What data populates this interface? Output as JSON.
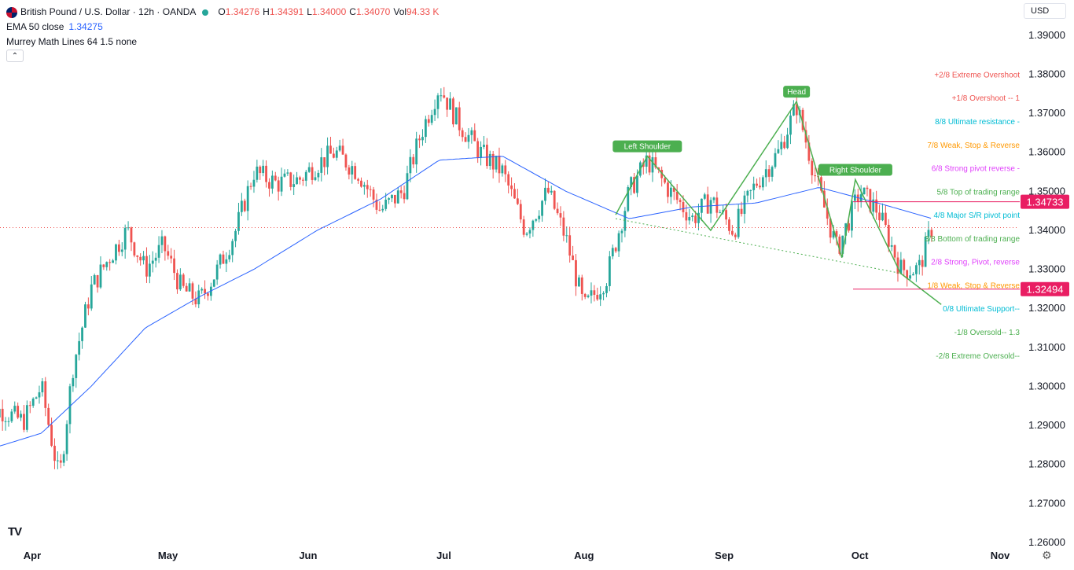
{
  "legend": {
    "symbol": "British Pound / U.S. Dollar · 12h · OANDA",
    "o_label": "O",
    "o_value": "1.34276",
    "h_label": "H",
    "h_value": "1.34391",
    "l_label": "L",
    "l_value": "1.34000",
    "c_label": "C",
    "c_value": "1.34070",
    "vol_label": "Vol",
    "vol_value": "94.33 K",
    "ema_label": "EMA 50 close",
    "ema_value": "1.34275",
    "murrey_label": "Murrey Math Lines 64 1.5 none",
    "collapse_icon": "chevron-up-icon"
  },
  "toolbar": {
    "currency": "USD"
  },
  "footer": {
    "logo_text": "TV",
    "settings_icon": "gear-icon"
  },
  "colors": {
    "up": "#26a69a",
    "down": "#ef5350",
    "ema": "#2962ff",
    "pattern": "#4caf50",
    "marker": "#e91e63"
  },
  "chart_data": {
    "type": "line",
    "ylim": [
      1.26,
      1.395
    ],
    "y_ticks": [
      "1.39000",
      "1.38000",
      "1.37000",
      "1.36000",
      "1.35000",
      "1.34000",
      "1.33000",
      "1.32000",
      "1.31000",
      "1.30000",
      "1.29000",
      "1.28000",
      "1.27000",
      "1.26000"
    ],
    "x_ticks": [
      "Apr",
      "May",
      "Jun",
      "Jul",
      "Aug",
      "Sep",
      "Oct",
      "Nov"
    ],
    "series": [
      {
        "name": "",
        "x": [
          "Mar 20",
          "Mar 25",
          "Mar 30",
          "Apr 3",
          "Apr 7",
          "Apr 10",
          "Apr 14",
          "Apr 18",
          "Apr 22",
          "Apr 26",
          "Apr 30",
          "May 4",
          "May 8",
          "May 12",
          "May 16",
          "May 20",
          "May 25",
          "May 30",
          "Jun 3",
          "Jun 7",
          "Jun 12",
          "Jun 17",
          "Jun 22",
          "Jun 26",
          "Jun 30",
          "Jul 4",
          "Jul 9",
          "Jul 14",
          "Jul 19",
          "Jul 24",
          "Jul 28",
          "Aug 1",
          "Aug 6",
          "Aug 11",
          "Aug 15",
          "Aug 20",
          "Aug 25",
          "Aug 29",
          "Sep 3",
          "Sep 8",
          "Sep 13",
          "Sep 17",
          "Sep 22",
          "Sep 26",
          "Oct 1",
          "Oct 5",
          "Oct 10",
          "Oct 14",
          "Oct 17"
        ],
        "values": [
          1.292,
          1.294,
          1.291,
          1.3,
          1.276,
          1.305,
          1.325,
          1.333,
          1.34,
          1.33,
          1.336,
          1.325,
          1.322,
          1.33,
          1.34,
          1.355,
          1.352,
          1.353,
          1.357,
          1.36,
          1.355,
          1.345,
          1.35,
          1.365,
          1.377,
          1.368,
          1.36,
          1.355,
          1.34,
          1.35,
          1.338,
          1.32,
          1.328,
          1.35,
          1.358,
          1.35,
          1.343,
          1.348,
          1.34,
          1.352,
          1.36,
          1.372,
          1.35,
          1.335,
          1.35,
          1.345,
          1.33,
          1.33,
          1.341
        ]
      },
      {
        "name": "EMA 50 close",
        "x": [
          "Mar 20",
          "Apr 3",
          "Apr 14",
          "Apr 26",
          "May 8",
          "May 20",
          "Jun 3",
          "Jun 17",
          "Jun 30",
          "Jul 14",
          "Jul 28",
          "Aug 11",
          "Aug 25",
          "Sep 8",
          "Sep 22",
          "Oct 5",
          "Oct 17"
        ],
        "values": [
          1.283,
          1.288,
          1.3,
          1.315,
          1.323,
          1.33,
          1.34,
          1.348,
          1.358,
          1.359,
          1.35,
          1.343,
          1.346,
          1.347,
          1.351,
          1.347,
          1.343
        ]
      }
    ],
    "murrey_levels": [
      {
        "label": "+2/8 Extreme Overshoot",
        "price": 1.38,
        "color": "#ef5350"
      },
      {
        "label": "+1/8 Overshoot --  1",
        "price": 1.374,
        "color": "#ef5350"
      },
      {
        "label": "8/8 Ultimate resistance -",
        "price": 1.368,
        "color": "#00bcd4"
      },
      {
        "label": "7/8 Weak, Stop & Reverse",
        "price": 1.362,
        "color": "#ff9800"
      },
      {
        "label": "6/8 Strong pivot reverse -",
        "price": 1.356,
        "color": "#e040fb"
      },
      {
        "label": "5/8 Top of trading range",
        "price": 1.35,
        "color": "#4caf50"
      },
      {
        "label": "4/8 Major S/R pivot point",
        "price": 1.344,
        "color": "#00bcd4"
      },
      {
        "label": "3/8 Bottom of trading range",
        "price": 1.338,
        "color": "#4caf50"
      },
      {
        "label": "2/8 Strong, Pivot, reverse",
        "price": 1.332,
        "color": "#e040fb"
      },
      {
        "label": "1/8 Weak, Stop & Reverse",
        "price": 1.326,
        "color": "#ff9800"
      },
      {
        "label": "0/8 Ultimate Support--",
        "price": 1.32,
        "color": "#00bcd4"
      },
      {
        "label": "-1/8 Oversold--  1.3",
        "price": 1.314,
        "color": "#4caf50"
      },
      {
        "label": "-2/8 Extreme Oversold--",
        "price": 1.308,
        "color": "#4caf50"
      }
    ],
    "price_markers": [
      {
        "label": "1.34733",
        "price": 1.34733
      },
      {
        "label": "1.32494",
        "price": 1.32494
      }
    ],
    "current_price": 1.3407,
    "pattern": {
      "labels": [
        {
          "text": "Left Shoulder",
          "x": "Aug 15",
          "price": 1.359
        },
        {
          "text": "Head",
          "x": "Sep 17",
          "price": 1.373
        },
        {
          "text": "Right Shoulder",
          "x": "Sep 30",
          "price": 1.353
        }
      ],
      "zigzag": [
        {
          "x": "Aug 8",
          "price": 1.344
        },
        {
          "x": "Aug 15",
          "price": 1.359
        },
        {
          "x": "Aug 29",
          "price": 1.34
        },
        {
          "x": "Sep 17",
          "price": 1.373
        },
        {
          "x": "Sep 27",
          "price": 1.333
        },
        {
          "x": "Sep 30",
          "price": 1.353
        },
        {
          "x": "Oct 10",
          "price": 1.329
        },
        {
          "x": "Oct 19",
          "price": 1.321
        }
      ],
      "neckline": [
        {
          "x": "Aug 8",
          "price": 1.343
        },
        {
          "x": "Oct 10",
          "price": 1.329
        }
      ]
    }
  }
}
